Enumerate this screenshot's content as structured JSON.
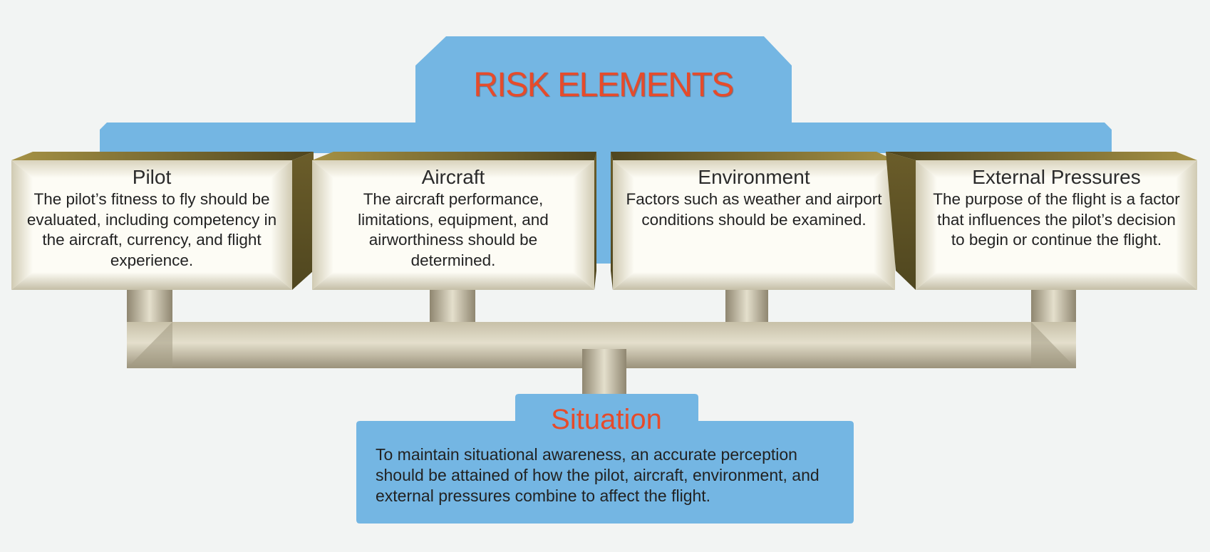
{
  "diagram": {
    "title": "RISK ELEMENTS",
    "elements": [
      {
        "name": "Pilot",
        "description": "The pilot’s fitness to fly should be evaluated, including competency in the aircraft, currency, and flight experience."
      },
      {
        "name": "Aircraft",
        "description": "The aircraft performance, limitations, equipment, and airworthiness should be determined."
      },
      {
        "name": "Environment",
        "description": "Factors such as weather and airport conditions should be examined."
      },
      {
        "name": "External Pressures",
        "description": "The purpose of the flight is a factor that influences the pilot’s decision to begin or continue the flight."
      }
    ],
    "situation": {
      "title": "Situation",
      "description": "To maintain situational awareness, an accurate perception should  be attained of how the pilot, aircraft, environment, and external pressures combine to affect the flight."
    }
  },
  "colors": {
    "background": "#f2f4f3",
    "panel_blue": "#74b6e3",
    "title_red": "#e64b2b",
    "box_face_light": "#fdfcf5",
    "box_face_dark": "#c9c3ab",
    "box_side_dark": "#5a4e22",
    "box_side_light": "#a89344",
    "pipe_light": "#dcd6c2",
    "pipe_dark": "#8f8670"
  }
}
